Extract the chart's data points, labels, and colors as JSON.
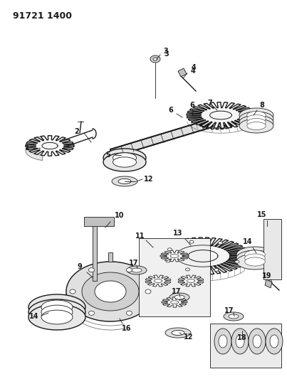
{
  "title": "91721 1400",
  "bg_color": "#ffffff",
  "fig_width": 4.03,
  "fig_height": 5.33,
  "dpi": 100,
  "line_color": "#1a1a1a",
  "label_fontsize": 7.0
}
